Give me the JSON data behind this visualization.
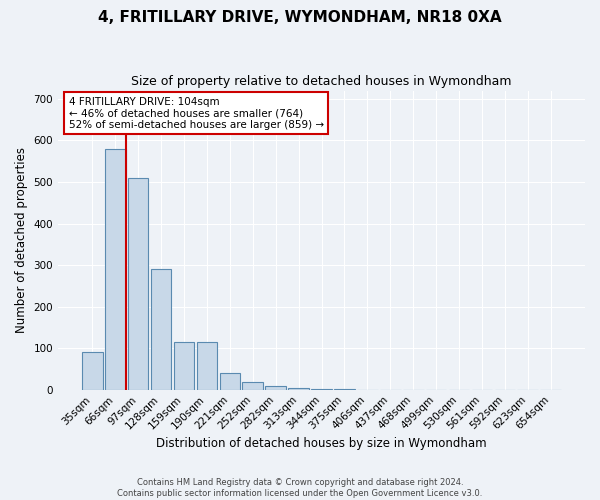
{
  "title": "4, FRITILLARY DRIVE, WYMONDHAM, NR18 0XA",
  "subtitle": "Size of property relative to detached houses in Wymondham",
  "xlabel": "Distribution of detached houses by size in Wymondham",
  "ylabel": "Number of detached properties",
  "footer_line1": "Contains HM Land Registry data © Crown copyright and database right 2024.",
  "footer_line2": "Contains public sector information licensed under the Open Government Licence v3.0.",
  "categories": [
    "35sqm",
    "66sqm",
    "97sqm",
    "128sqm",
    "159sqm",
    "190sqm",
    "221sqm",
    "252sqm",
    "282sqm",
    "313sqm",
    "344sqm",
    "375sqm",
    "406sqm",
    "437sqm",
    "468sqm",
    "499sqm",
    "530sqm",
    "561sqm",
    "592sqm",
    "623sqm",
    "654sqm"
  ],
  "values": [
    90,
    580,
    510,
    290,
    115,
    115,
    40,
    18,
    10,
    5,
    2,
    2,
    0,
    0,
    0,
    0,
    0,
    0,
    0,
    0,
    0
  ],
  "bar_color": "#c8d8e8",
  "bar_edge_color": "#5a8ab0",
  "vline_color": "#cc0000",
  "annotation_text": "4 FRITILLARY DRIVE: 104sqm\n← 46% of detached houses are smaller (764)\n52% of semi-detached houses are larger (859) →",
  "annotation_box_color": "white",
  "annotation_box_edge_color": "#cc0000",
  "ylim": [
    0,
    720
  ],
  "yticks": [
    0,
    100,
    200,
    300,
    400,
    500,
    600,
    700
  ],
  "background_color": "#eef2f7",
  "plot_background_color": "#eef2f7",
  "title_fontsize": 11,
  "subtitle_fontsize": 9,
  "tick_fontsize": 7.5,
  "label_fontsize": 8.5
}
